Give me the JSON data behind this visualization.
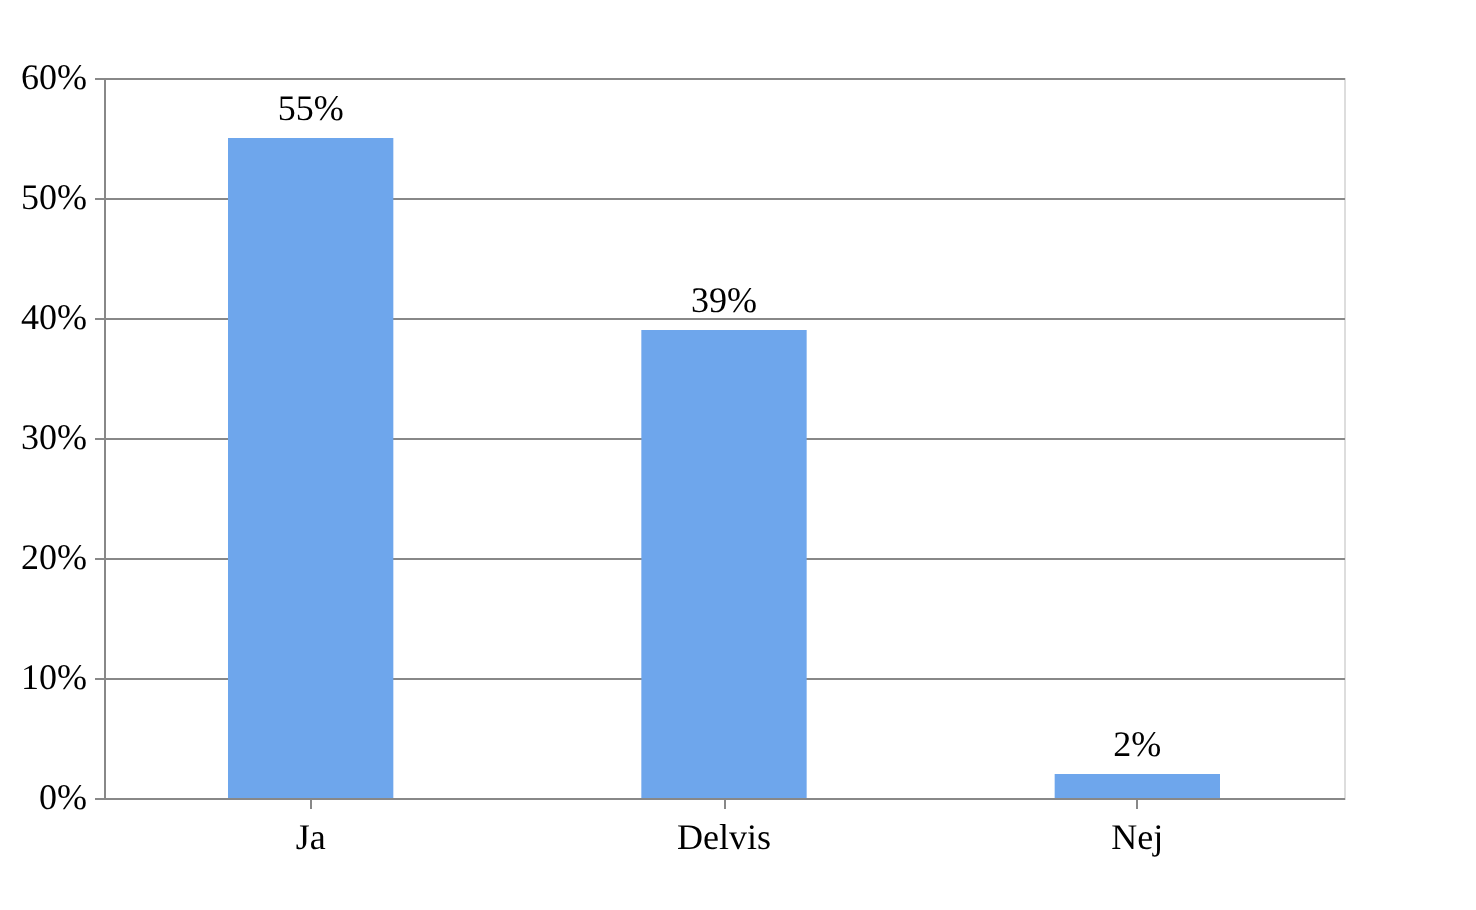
{
  "chart_data": {
    "type": "bar",
    "categories": [
      "Ja",
      "Delvis",
      "Nej"
    ],
    "values": [
      55,
      39,
      2
    ],
    "value_labels": [
      "55%",
      "39%",
      "2%"
    ],
    "color": "#6ea6ec",
    "ylim": [
      0,
      60
    ],
    "yticks": [
      {
        "value": 0,
        "label": "0%"
      },
      {
        "value": 10,
        "label": "10%"
      },
      {
        "value": 20,
        "label": "20%"
      },
      {
        "value": 30,
        "label": "30%"
      },
      {
        "value": 40,
        "label": "40%"
      },
      {
        "value": 50,
        "label": "50%"
      },
      {
        "value": 60,
        "label": "60%"
      }
    ],
    "grid": "y"
  }
}
